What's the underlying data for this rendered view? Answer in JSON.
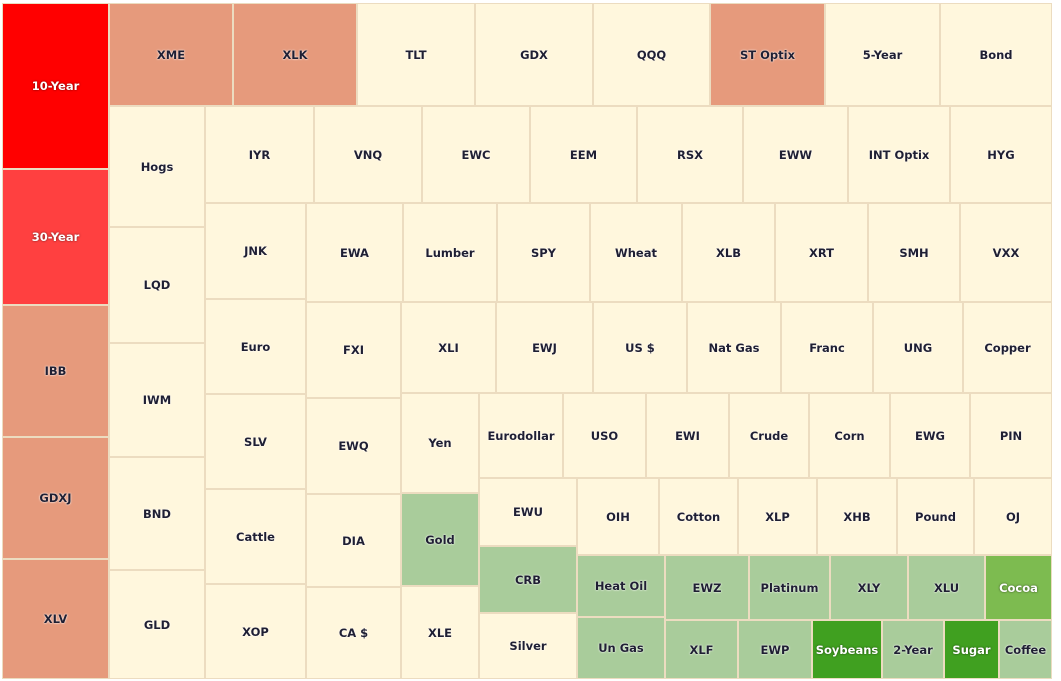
{
  "chart_data": {
    "type": "treemap",
    "color_scale": {
      "strong_negative": "#ff0000",
      "negative": "#ff4040",
      "mild_negative": "#e69a7c",
      "neutral": "#fff7dd",
      "mild_positive": "#a9cc9b",
      "positive": "#7dbb50",
      "strong_positive": "#40a020"
    },
    "cells": [
      {
        "label": "10-Year",
        "color": "#ff0000"
      },
      {
        "label": "30-Year",
        "color": "#ff4040"
      },
      {
        "label": "IBB",
        "color": "#e69a7c"
      },
      {
        "label": "GDXJ",
        "color": "#e69a7c"
      },
      {
        "label": "XLV",
        "color": "#e69a7c"
      },
      {
        "label": "XME",
        "color": "#e69a7c"
      },
      {
        "label": "XLK",
        "color": "#e69a7c"
      },
      {
        "label": "TLT",
        "color": "#fff7dd"
      },
      {
        "label": "GDX",
        "color": "#fff7dd"
      },
      {
        "label": "QQQ",
        "color": "#fff7dd"
      },
      {
        "label": "ST Optix",
        "color": "#e69a7c"
      },
      {
        "label": "5-Year",
        "color": "#fff7dd"
      },
      {
        "label": "Bond",
        "color": "#fff7dd"
      },
      {
        "label": "Hogs",
        "color": "#fff7dd"
      },
      {
        "label": "LQD",
        "color": "#fff7dd"
      },
      {
        "label": "IWM",
        "color": "#fff7dd"
      },
      {
        "label": "BND",
        "color": "#fff7dd"
      },
      {
        "label": "GLD",
        "color": "#fff7dd"
      },
      {
        "label": "IYR",
        "color": "#fff7dd"
      },
      {
        "label": "VNQ",
        "color": "#fff7dd"
      },
      {
        "label": "EWC",
        "color": "#fff7dd"
      },
      {
        "label": "EEM",
        "color": "#fff7dd"
      },
      {
        "label": "RSX",
        "color": "#fff7dd"
      },
      {
        "label": "EWW",
        "color": "#fff7dd"
      },
      {
        "label": "INT Optix",
        "color": "#fff7dd"
      },
      {
        "label": "HYG",
        "color": "#fff7dd"
      },
      {
        "label": "JNK",
        "color": "#fff7dd"
      },
      {
        "label": "Euro",
        "color": "#fff7dd"
      },
      {
        "label": "SLV",
        "color": "#fff7dd"
      },
      {
        "label": "Cattle",
        "color": "#fff7dd"
      },
      {
        "label": "XOP",
        "color": "#fff7dd"
      },
      {
        "label": "EWA",
        "color": "#fff7dd"
      },
      {
        "label": "FXI",
        "color": "#fff7dd"
      },
      {
        "label": "EWQ",
        "color": "#fff7dd"
      },
      {
        "label": "DIA",
        "color": "#fff7dd"
      },
      {
        "label": "CA $",
        "color": "#fff7dd"
      },
      {
        "label": "Lumber",
        "color": "#fff7dd"
      },
      {
        "label": "SPY",
        "color": "#fff7dd"
      },
      {
        "label": "Wheat",
        "color": "#fff7dd"
      },
      {
        "label": "XLB",
        "color": "#fff7dd"
      },
      {
        "label": "XRT",
        "color": "#fff7dd"
      },
      {
        "label": "SMH",
        "color": "#fff7dd"
      },
      {
        "label": "VXX",
        "color": "#fff7dd"
      },
      {
        "label": "XLI",
        "color": "#fff7dd"
      },
      {
        "label": "EWJ",
        "color": "#fff7dd"
      },
      {
        "label": "US $",
        "color": "#fff7dd"
      },
      {
        "label": "Nat Gas",
        "color": "#fff7dd"
      },
      {
        "label": "Franc",
        "color": "#fff7dd"
      },
      {
        "label": "UNG",
        "color": "#fff7dd"
      },
      {
        "label": "Copper",
        "color": "#fff7dd"
      },
      {
        "label": "Yen",
        "color": "#fff7dd"
      },
      {
        "label": "Gold",
        "color": "#a9cc9b"
      },
      {
        "label": "XLE",
        "color": "#fff7dd"
      },
      {
        "label": "Eurodollar",
        "color": "#fff7dd"
      },
      {
        "label": "USO",
        "color": "#fff7dd"
      },
      {
        "label": "EWI",
        "color": "#fff7dd"
      },
      {
        "label": "Crude",
        "color": "#fff7dd"
      },
      {
        "label": "Corn",
        "color": "#fff7dd"
      },
      {
        "label": "EWG",
        "color": "#fff7dd"
      },
      {
        "label": "PIN",
        "color": "#fff7dd"
      },
      {
        "label": "EWU",
        "color": "#fff7dd"
      },
      {
        "label": "CRB",
        "color": "#a9cc9b"
      },
      {
        "label": "Silver",
        "color": "#fff7dd"
      },
      {
        "label": "OIH",
        "color": "#fff7dd"
      },
      {
        "label": "Cotton",
        "color": "#fff7dd"
      },
      {
        "label": "XLP",
        "color": "#fff7dd"
      },
      {
        "label": "XHB",
        "color": "#fff7dd"
      },
      {
        "label": "Pound",
        "color": "#fff7dd"
      },
      {
        "label": "OJ",
        "color": "#fff7dd"
      },
      {
        "label": "Heat Oil",
        "color": "#a9cc9b"
      },
      {
        "label": "EWZ",
        "color": "#a9cc9b"
      },
      {
        "label": "Platinum",
        "color": "#a9cc9b"
      },
      {
        "label": "XLY",
        "color": "#a9cc9b"
      },
      {
        "label": "XLU",
        "color": "#a9cc9b"
      },
      {
        "label": "Cocoa",
        "color": "#7dbb50"
      },
      {
        "label": "Un Gas",
        "color": "#a9cc9b"
      },
      {
        "label": "XLF",
        "color": "#a9cc9b"
      },
      {
        "label": "EWP",
        "color": "#a9cc9b"
      },
      {
        "label": "Soybeans",
        "color": "#40a020"
      },
      {
        "label": "2-Year",
        "color": "#a9cc9b"
      },
      {
        "label": "Sugar",
        "color": "#40a020"
      },
      {
        "label": "Coffee",
        "color": "#a9cc9b"
      }
    ]
  }
}
